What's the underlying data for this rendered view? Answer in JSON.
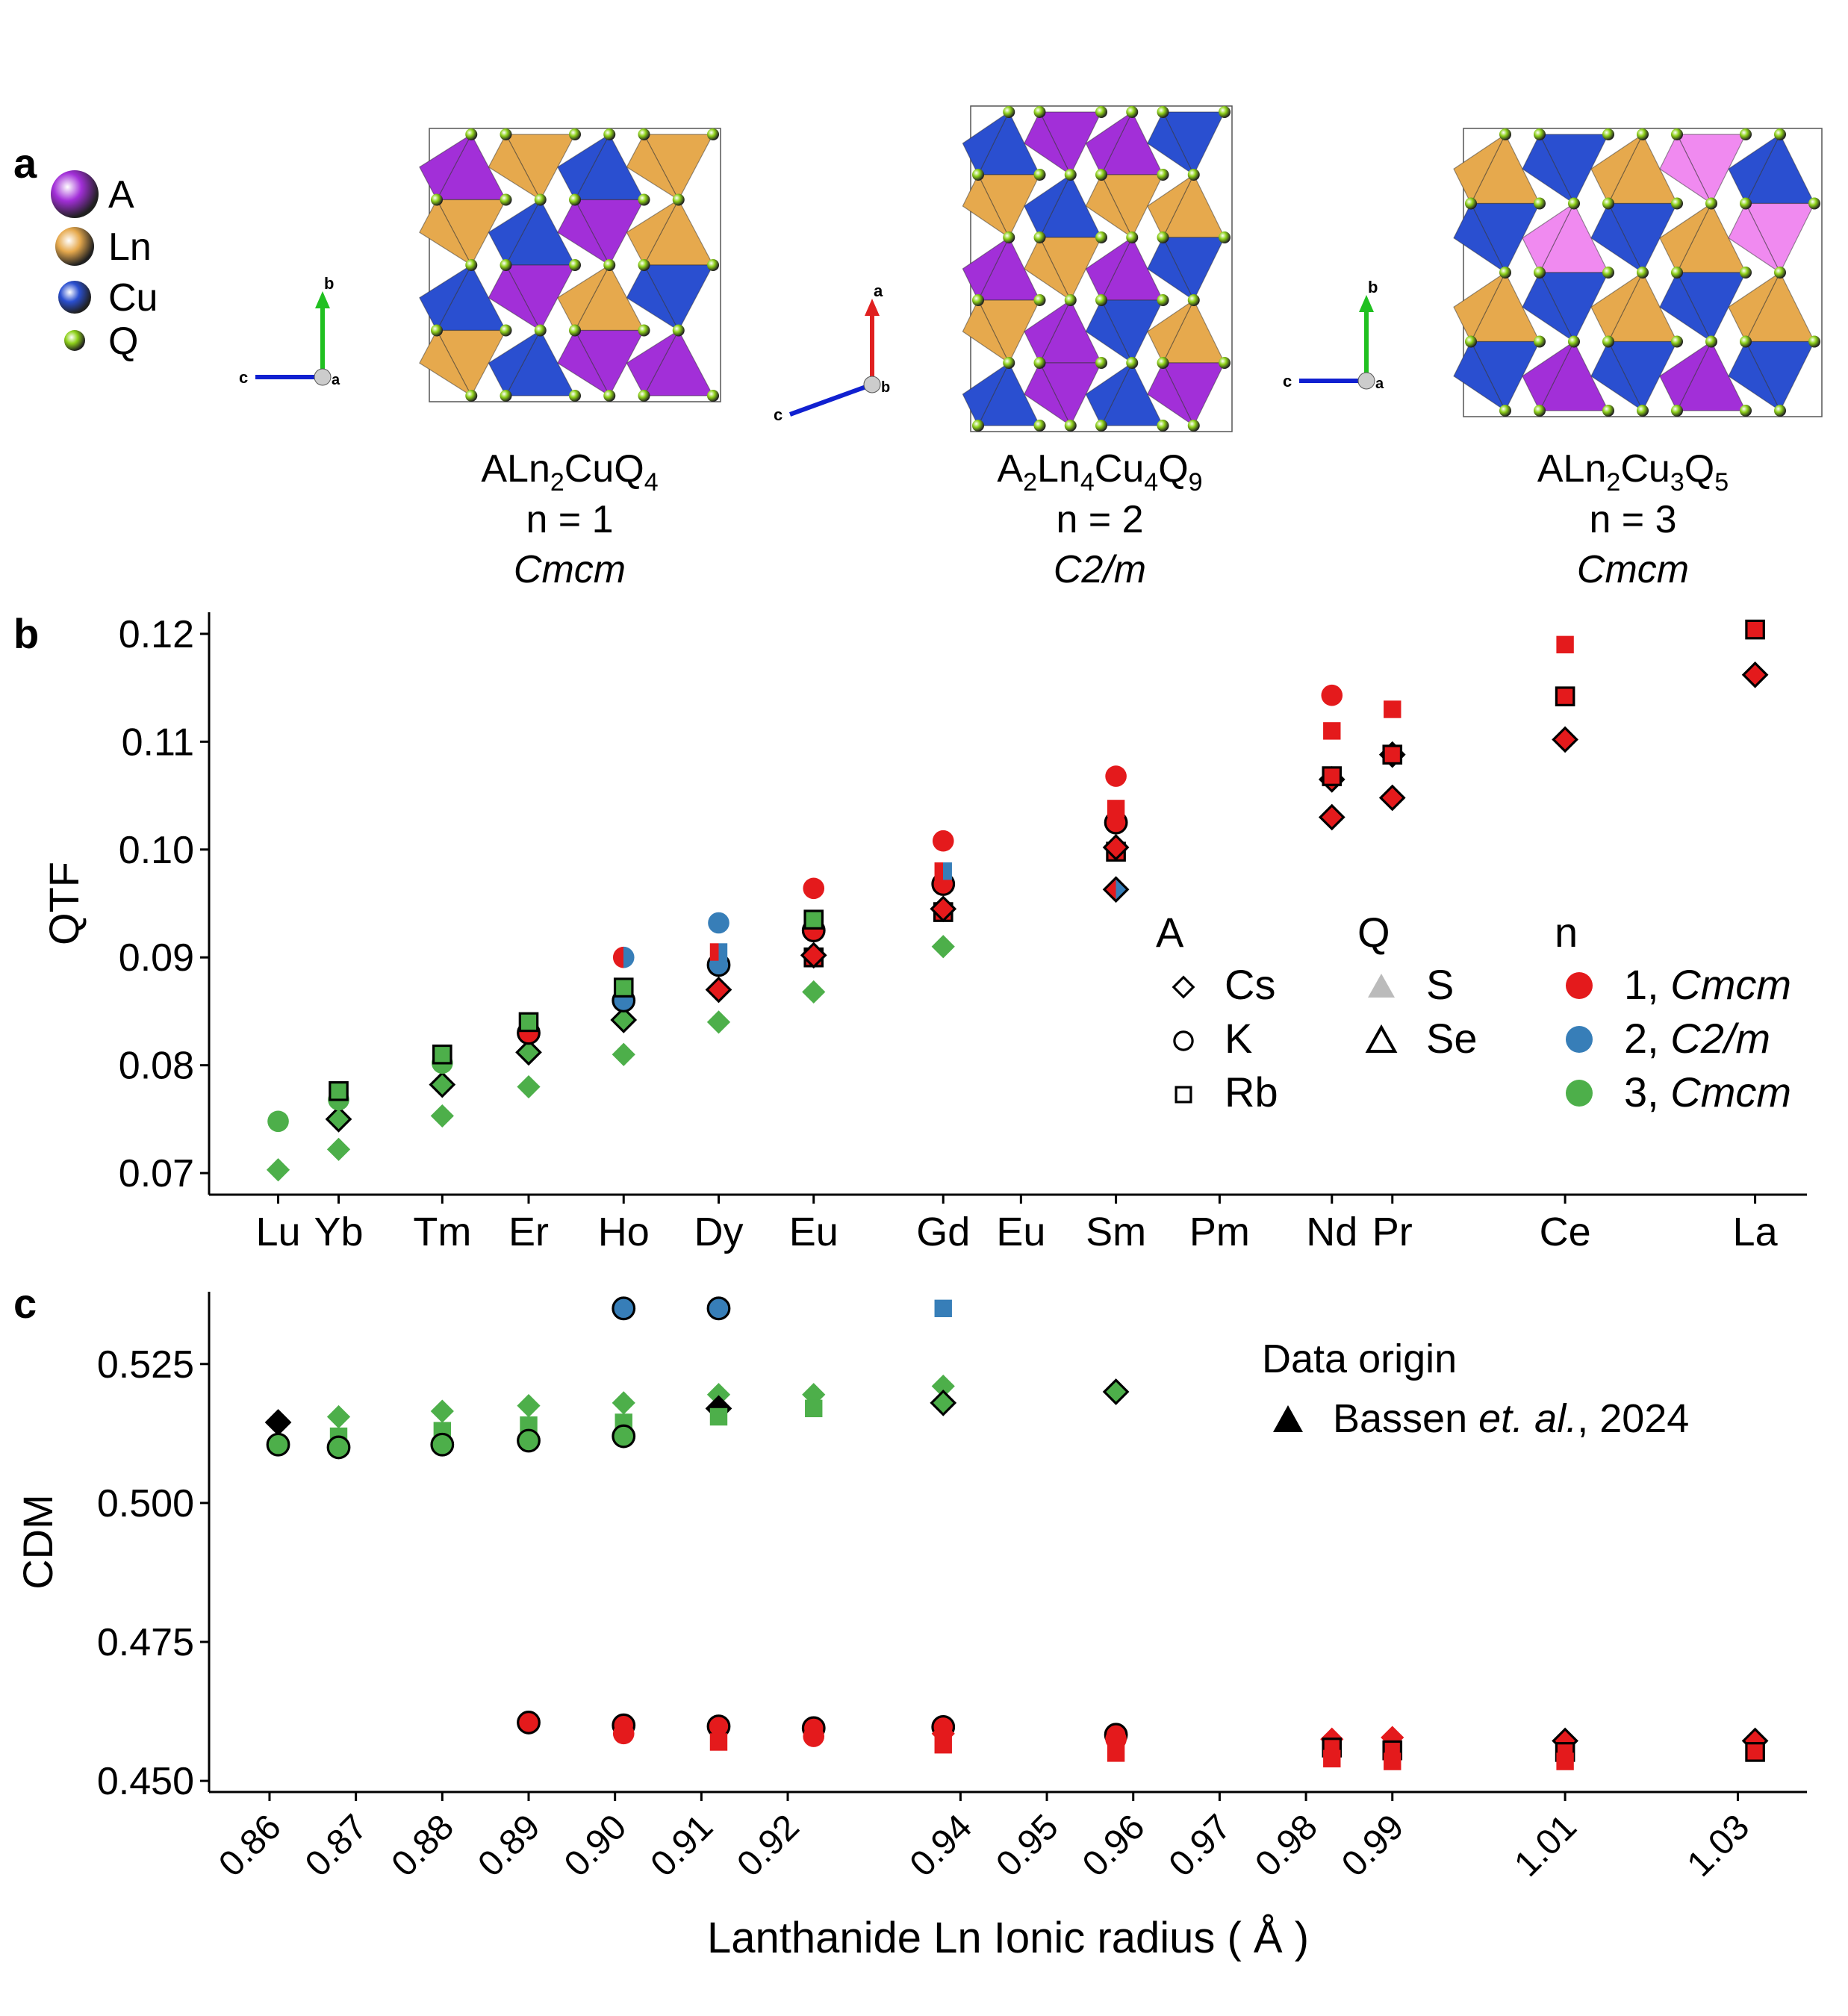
{
  "panel_labels": {
    "a": "a",
    "b": "b",
    "c": "c"
  },
  "panel_a": {
    "legend": [
      {
        "label": "A",
        "color": "#a22fd8"
      },
      {
        "label": "Ln",
        "color": "#e6a94d"
      },
      {
        "label": "Cu",
        "color": "#2a4fd0"
      },
      {
        "label": "Q",
        "color": "#8ed11a"
      }
    ],
    "structures": [
      {
        "formula_html": "ALn<tspan baseline-shift='sub' font-size='32'>2</tspan>CuQ<tspan baseline-shift='sub' font-size='32'>4</tspan>",
        "formula": "ALn2CuQ4",
        "n_label": "n = 1",
        "space_group": "Cmcm",
        "axes": {
          "right": "b",
          "left": "c",
          "center": "a"
        }
      },
      {
        "formula": "A2Ln4Cu4Q9",
        "n_label": "n = 2",
        "space_group": "C2/m",
        "axes": {
          "up": "a",
          "left": "c",
          "center": "b"
        }
      },
      {
        "formula": "ALn2Cu3Q5",
        "n_label": "n = 3",
        "space_group": "Cmcm",
        "axes": {
          "up": "b",
          "left": "c",
          "center": "a"
        }
      }
    ],
    "element_colors": {
      "A": "#a22fd8",
      "Ln": "#e6a94d",
      "Cu": "#2a4fd0",
      "Q": "#8ed11a",
      "A_light": "#f08af0"
    }
  },
  "colors": {
    "n1": "#e41a1c",
    "n2": "#377eb8",
    "n3": "#4daf4a"
  },
  "chart_data": [
    {
      "panel": "b",
      "type": "scatter",
      "ylabel": "QTF",
      "ylim": [
        0.068,
        0.122
      ],
      "xlim": [
        0.853,
        1.038
      ],
      "yticks": [
        0.07,
        0.08,
        0.09,
        0.1,
        0.11,
        0.12
      ],
      "ytick_labels": [
        "0.07",
        "0.08",
        "0.09",
        "0.10",
        "0.11",
        "0.12"
      ],
      "x_element_labels": [
        {
          "x": 0.861,
          "label": "Lu"
        },
        {
          "x": 0.868,
          "label": "Yb"
        },
        {
          "x": 0.88,
          "label": "Tm"
        },
        {
          "x": 0.89,
          "label": "Er"
        },
        {
          "x": 0.901,
          "label": "Ho"
        },
        {
          "x": 0.912,
          "label": "Dy"
        },
        {
          "x": 0.923,
          "label": "Eu"
        },
        {
          "x": 0.938,
          "label": "Gd"
        },
        {
          "x": 0.947,
          "label": "Eu"
        },
        {
          "x": 0.958,
          "label": "Sm"
        },
        {
          "x": 0.97,
          "label": "Pm"
        },
        {
          "x": 0.983,
          "label": "Nd"
        },
        {
          "x": 0.99,
          "label": "Pr"
        },
        {
          "x": 1.01,
          "label": "Ce"
        },
        {
          "x": 1.032,
          "label": "La"
        }
      ],
      "legend": {
        "A": {
          "title": "A",
          "items": [
            {
              "label": "Cs",
              "shape": "diamond"
            },
            {
              "label": "K",
              "shape": "circle"
            },
            {
              "label": "Rb",
              "shape": "square"
            }
          ]
        },
        "Q": {
          "title": "Q",
          "items": [
            {
              "label": "S",
              "style": "filled-gray"
            },
            {
              "label": "Se",
              "style": "outlined"
            }
          ]
        },
        "n": {
          "title": "n",
          "items": [
            {
              "num": "1, ",
              "sg": "Cmcm",
              "color": "#e41a1c"
            },
            {
              "num": "2, ",
              "sg": "C2/m",
              "color": "#377eb8"
            },
            {
              "num": "3, ",
              "sg": "Cmcm",
              "color": "#4daf4a"
            }
          ]
        }
      },
      "points": [
        {
          "x": 0.861,
          "y": 0.0703,
          "shape": "diamond",
          "n": 3,
          "q": "S"
        },
        {
          "x": 0.861,
          "y": 0.0748,
          "shape": "circle",
          "n": 3,
          "q": "S"
        },
        {
          "x": 0.868,
          "y": 0.0722,
          "shape": "diamond",
          "n": 3,
          "q": "S"
        },
        {
          "x": 0.868,
          "y": 0.075,
          "shape": "diamond",
          "n": 3,
          "q": "Se"
        },
        {
          "x": 0.868,
          "y": 0.0768,
          "shape": "circle",
          "n": 3,
          "q": "S"
        },
        {
          "x": 0.868,
          "y": 0.0776,
          "shape": "square",
          "n": 3,
          "q": "Se"
        },
        {
          "x": 0.88,
          "y": 0.0753,
          "shape": "diamond",
          "n": 3,
          "q": "S"
        },
        {
          "x": 0.88,
          "y": 0.0782,
          "shape": "diamond",
          "n": 3,
          "q": "Se"
        },
        {
          "x": 0.88,
          "y": 0.0802,
          "shape": "circle",
          "n": 3,
          "q": "S"
        },
        {
          "x": 0.88,
          "y": 0.081,
          "shape": "square",
          "n": 3,
          "q": "Se"
        },
        {
          "x": 0.89,
          "y": 0.078,
          "shape": "diamond",
          "n": 3,
          "q": "S"
        },
        {
          "x": 0.89,
          "y": 0.0812,
          "shape": "diamond",
          "n": 3,
          "q": "Se"
        },
        {
          "x": 0.89,
          "y": 0.083,
          "shape": "circle",
          "n": 1,
          "q": "Se"
        },
        {
          "x": 0.89,
          "y": 0.084,
          "shape": "square",
          "n": 3,
          "q": "Se"
        },
        {
          "x": 0.901,
          "y": 0.081,
          "shape": "diamond",
          "n": 3,
          "q": "S"
        },
        {
          "x": 0.901,
          "y": 0.0842,
          "shape": "diamond",
          "n": 3,
          "q": "Se"
        },
        {
          "x": 0.901,
          "y": 0.086,
          "shape": "circle",
          "n": 2,
          "q": "Se"
        },
        {
          "x": 0.901,
          "y": 0.0872,
          "shape": "square",
          "n": 3,
          "q": "Se"
        },
        {
          "x": 0.901,
          "y": 0.09,
          "shape": "circle",
          "n": "1/2",
          "q": "S"
        },
        {
          "x": 0.912,
          "y": 0.084,
          "shape": "diamond",
          "n": 3,
          "q": "S"
        },
        {
          "x": 0.912,
          "y": 0.087,
          "shape": "diamond",
          "n": 1,
          "q": "Se"
        },
        {
          "x": 0.912,
          "y": 0.0893,
          "shape": "circle",
          "n": 2,
          "q": "Se"
        },
        {
          "x": 0.912,
          "y": 0.0905,
          "shape": "square",
          "n": "1/2",
          "q": "S"
        },
        {
          "x": 0.912,
          "y": 0.0932,
          "shape": "circle",
          "n": 2,
          "q": "S"
        },
        {
          "x": 0.923,
          "y": 0.0868,
          "shape": "diamond",
          "n": 3,
          "q": "S"
        },
        {
          "x": 0.923,
          "y": 0.09,
          "shape": "square",
          "n": 1,
          "q": "Se"
        },
        {
          "x": 0.923,
          "y": 0.0902,
          "shape": "diamond",
          "n": 1,
          "q": "Se"
        },
        {
          "x": 0.923,
          "y": 0.0925,
          "shape": "circle",
          "n": 1,
          "q": "Se"
        },
        {
          "x": 0.923,
          "y": 0.0935,
          "shape": "square",
          "n": 3,
          "q": "Se"
        },
        {
          "x": 0.923,
          "y": 0.0964,
          "shape": "circle",
          "n": 1,
          "q": "S"
        },
        {
          "x": 0.938,
          "y": 0.091,
          "shape": "diamond",
          "n": 3,
          "q": "S"
        },
        {
          "x": 0.938,
          "y": 0.0942,
          "shape": "square",
          "n": 1,
          "q": "Se"
        },
        {
          "x": 0.938,
          "y": 0.0945,
          "shape": "diamond",
          "n": 1,
          "q": "Se"
        },
        {
          "x": 0.938,
          "y": 0.0968,
          "shape": "circle",
          "n": 1,
          "q": "Se"
        },
        {
          "x": 0.938,
          "y": 0.098,
          "shape": "square",
          "n": "1/2",
          "q": "S"
        },
        {
          "x": 0.938,
          "y": 0.1008,
          "shape": "circle",
          "n": 1,
          "q": "S"
        },
        {
          "x": 0.958,
          "y": 0.0963,
          "shape": "diamond",
          "n": "1/2",
          "q": "Se"
        },
        {
          "x": 0.958,
          "y": 0.0998,
          "shape": "square",
          "n": 1,
          "q": "Se"
        },
        {
          "x": 0.958,
          "y": 0.1002,
          "shape": "diamond",
          "n": 1,
          "q": "Se"
        },
        {
          "x": 0.958,
          "y": 0.1025,
          "shape": "circle",
          "n": 1,
          "q": "Se"
        },
        {
          "x": 0.958,
          "y": 0.1038,
          "shape": "square",
          "n": 1,
          "q": "S"
        },
        {
          "x": 0.958,
          "y": 0.1068,
          "shape": "circle",
          "n": 1,
          "q": "S"
        },
        {
          "x": 0.983,
          "y": 0.103,
          "shape": "diamond",
          "n": 1,
          "q": "Se"
        },
        {
          "x": 0.983,
          "y": 0.1065,
          "shape": "diamond",
          "n": 1,
          "q": "Se"
        },
        {
          "x": 0.983,
          "y": 0.1068,
          "shape": "square",
          "n": 1,
          "q": "Se"
        },
        {
          "x": 0.983,
          "y": 0.111,
          "shape": "square",
          "n": 1,
          "q": "S"
        },
        {
          "x": 0.983,
          "y": 0.1143,
          "shape": "circle",
          "n": 1,
          "q": "S"
        },
        {
          "x": 0.99,
          "y": 0.1048,
          "shape": "diamond",
          "n": 1,
          "q": "Se"
        },
        {
          "x": 0.99,
          "y": 0.1088,
          "shape": "diamond",
          "n": 1,
          "q": "Se"
        },
        {
          "x": 0.99,
          "y": 0.1088,
          "shape": "square",
          "n": 1,
          "q": "Se"
        },
        {
          "x": 0.99,
          "y": 0.113,
          "shape": "square",
          "n": 1,
          "q": "S"
        },
        {
          "x": 1.01,
          "y": 0.1102,
          "shape": "diamond",
          "n": 1,
          "q": "Se"
        },
        {
          "x": 1.01,
          "y": 0.1142,
          "shape": "square",
          "n": 1,
          "q": "Se"
        },
        {
          "x": 1.01,
          "y": 0.119,
          "shape": "square",
          "n": 1,
          "q": "S"
        },
        {
          "x": 1.032,
          "y": 0.1162,
          "shape": "diamond",
          "n": 1,
          "q": "Se"
        },
        {
          "x": 1.032,
          "y": 0.1204,
          "shape": "square",
          "n": 1,
          "q": "Se"
        }
      ]
    },
    {
      "panel": "c",
      "type": "scatter",
      "ylabel": "CDM",
      "xlabel": "Lanthanide Ln Ionic radius ( Å )",
      "ylim": [
        0.448,
        0.538
      ],
      "xlim": [
        0.853,
        1.038
      ],
      "yticks": [
        0.45,
        0.475,
        0.5,
        0.525
      ],
      "ytick_labels": [
        "0.450",
        "0.475",
        "0.500",
        "0.525"
      ],
      "xticks": [
        0.86,
        0.87,
        0.88,
        0.89,
        0.9,
        0.91,
        0.92,
        0.94,
        0.95,
        0.96,
        0.97,
        0.98,
        0.99,
        1.01,
        1.03
      ],
      "xtick_labels": [
        "0.86",
        "0.87",
        "0.88",
        "0.89",
        "0.90",
        "0.91",
        "0.92",
        "0.94",
        "0.95",
        "0.96",
        "0.97",
        "0.98",
        "0.99",
        "1.01",
        "1.03"
      ],
      "legend": {
        "title": "Data origin",
        "item_prefix": "Bassen ",
        "item_italic": "et. al.",
        "item_suffix": ", 2024"
      },
      "points": [
        {
          "x": 0.861,
          "y": 0.5145,
          "shape": "diamond",
          "n": 1,
          "q": "Se",
          "color": "black"
        },
        {
          "x": 0.861,
          "y": 0.5105,
          "shape": "circle",
          "n": 3,
          "q": "Se"
        },
        {
          "x": 0.868,
          "y": 0.5155,
          "shape": "diamond",
          "n": 3,
          "q": "S"
        },
        {
          "x": 0.868,
          "y": 0.512,
          "shape": "square",
          "n": 3,
          "q": "S"
        },
        {
          "x": 0.868,
          "y": 0.51,
          "shape": "circle",
          "n": 3,
          "q": "Se"
        },
        {
          "x": 0.88,
          "y": 0.5165,
          "shape": "diamond",
          "n": 3,
          "q": "S"
        },
        {
          "x": 0.88,
          "y": 0.513,
          "shape": "square",
          "n": 3,
          "q": "S"
        },
        {
          "x": 0.88,
          "y": 0.5105,
          "shape": "circle",
          "n": 3,
          "q": "Se"
        },
        {
          "x": 0.89,
          "y": 0.5175,
          "shape": "diamond",
          "n": 3,
          "q": "S"
        },
        {
          "x": 0.89,
          "y": 0.514,
          "shape": "square",
          "n": 3,
          "q": "S"
        },
        {
          "x": 0.89,
          "y": 0.5112,
          "shape": "circle",
          "n": 3,
          "q": "Se"
        },
        {
          "x": 0.89,
          "y": 0.4605,
          "shape": "circle",
          "n": 1,
          "q": "Se"
        },
        {
          "x": 0.901,
          "y": 0.535,
          "shape": "circle",
          "n": 2,
          "q": "Se"
        },
        {
          "x": 0.901,
          "y": 0.518,
          "shape": "diamond",
          "n": 3,
          "q": "S"
        },
        {
          "x": 0.901,
          "y": 0.5145,
          "shape": "square",
          "n": 3,
          "q": "S"
        },
        {
          "x": 0.901,
          "y": 0.512,
          "shape": "circle",
          "n": 3,
          "q": "Se"
        },
        {
          "x": 0.901,
          "y": 0.46,
          "shape": "circle",
          "n": 1,
          "q": "Se"
        },
        {
          "x": 0.901,
          "y": 0.4585,
          "shape": "circle",
          "n": 1,
          "q": "S"
        },
        {
          "x": 0.912,
          "y": 0.535,
          "shape": "circle",
          "n": 2,
          "q": "Se"
        },
        {
          "x": 0.912,
          "y": 0.5195,
          "shape": "diamond",
          "n": 3,
          "q": "S"
        },
        {
          "x": 0.912,
          "y": 0.517,
          "shape": "diamond",
          "n": 1,
          "q": "Se",
          "color": "black"
        },
        {
          "x": 0.912,
          "y": 0.5155,
          "shape": "square",
          "n": 3,
          "q": "S"
        },
        {
          "x": 0.912,
          "y": 0.4598,
          "shape": "circle",
          "n": 1,
          "q": "Se"
        },
        {
          "x": 0.912,
          "y": 0.457,
          "shape": "square",
          "n": 1,
          "q": "S"
        },
        {
          "x": 0.923,
          "y": 0.5195,
          "shape": "diamond",
          "n": 3,
          "q": "S"
        },
        {
          "x": 0.923,
          "y": 0.517,
          "shape": "square",
          "n": 3,
          "q": "S"
        },
        {
          "x": 0.923,
          "y": 0.4595,
          "shape": "circle",
          "n": 1,
          "q": "Se"
        },
        {
          "x": 0.923,
          "y": 0.458,
          "shape": "circle",
          "n": 1,
          "q": "S"
        },
        {
          "x": 0.938,
          "y": 0.535,
          "shape": "square",
          "n": 2,
          "q": "S"
        },
        {
          "x": 0.938,
          "y": 0.521,
          "shape": "diamond",
          "n": 3,
          "q": "S"
        },
        {
          "x": 0.938,
          "y": 0.518,
          "shape": "diamond",
          "n": 3,
          "q": "Se"
        },
        {
          "x": 0.938,
          "y": 0.4597,
          "shape": "circle",
          "n": 1,
          "q": "Se"
        },
        {
          "x": 0.938,
          "y": 0.4585,
          "shape": "diamond",
          "n": 1,
          "q": "S"
        },
        {
          "x": 0.938,
          "y": 0.4565,
          "shape": "square",
          "n": 1,
          "q": "S"
        },
        {
          "x": 0.958,
          "y": 0.52,
          "shape": "diamond",
          "n": 3,
          "q": "Se"
        },
        {
          "x": 0.958,
          "y": 0.4583,
          "shape": "circle",
          "n": 1,
          "q": "Se"
        },
        {
          "x": 0.958,
          "y": 0.4575,
          "shape": "circle",
          "n": 1,
          "q": "S"
        },
        {
          "x": 0.958,
          "y": 0.455,
          "shape": "square",
          "n": 1,
          "q": "S"
        },
        {
          "x": 0.983,
          "y": 0.4575,
          "shape": "diamond",
          "n": 1,
          "q": "S"
        },
        {
          "x": 0.983,
          "y": 0.456,
          "shape": "square",
          "n": 1,
          "q": "Se"
        },
        {
          "x": 0.983,
          "y": 0.454,
          "shape": "square",
          "n": 1,
          "q": "S"
        },
        {
          "x": 0.99,
          "y": 0.4578,
          "shape": "diamond",
          "n": 1,
          "q": "S"
        },
        {
          "x": 0.99,
          "y": 0.4555,
          "shape": "square",
          "n": 1,
          "q": "Se"
        },
        {
          "x": 0.99,
          "y": 0.4535,
          "shape": "square",
          "n": 1,
          "q": "S"
        },
        {
          "x": 1.01,
          "y": 0.4572,
          "shape": "diamond",
          "n": 1,
          "q": "Se"
        },
        {
          "x": 1.01,
          "y": 0.4552,
          "shape": "square",
          "n": 1,
          "q": "Se"
        },
        {
          "x": 1.01,
          "y": 0.4535,
          "shape": "square",
          "n": 1,
          "q": "S"
        },
        {
          "x": 1.032,
          "y": 0.4572,
          "shape": "diamond",
          "n": 1,
          "q": "Se"
        },
        {
          "x": 1.032,
          "y": 0.4552,
          "shape": "square",
          "n": 1,
          "q": "Se"
        }
      ]
    }
  ]
}
